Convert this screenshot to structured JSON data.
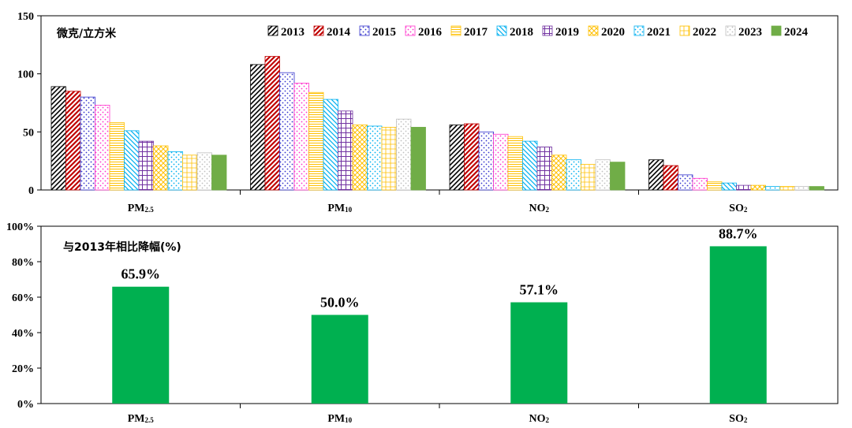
{
  "chart_data": [
    {
      "type": "bar",
      "title": "",
      "unit_label": "微克/立方米",
      "xlabel": "",
      "ylabel": "",
      "ylim": [
        0,
        150
      ],
      "yticks": [
        "0",
        "50",
        "100",
        "150"
      ],
      "categories": [
        "PM2.5",
        "PM10",
        "NO2",
        "SO2"
      ],
      "category_labels": [
        {
          "main": "PM",
          "sub": "2.5"
        },
        {
          "main": "PM",
          "sub": "10"
        },
        {
          "main": "NO",
          "sub": "2"
        },
        {
          "main": "SO",
          "sub": "2"
        }
      ],
      "legend_placement": "top-right",
      "grid": false,
      "series": [
        {
          "name": "2013",
          "values": [
            89,
            108,
            56,
            26
          ],
          "color": "#000000",
          "pattern": "diag"
        },
        {
          "name": "2014",
          "values": [
            85,
            115,
            57,
            21
          ],
          "color": "#c00000",
          "pattern": "diag-dense"
        },
        {
          "name": "2015",
          "values": [
            80,
            101,
            50,
            13
          ],
          "color": "#3333cc",
          "pattern": "dots"
        },
        {
          "name": "2016",
          "values": [
            73,
            92,
            48,
            10
          ],
          "color": "#ff33cc",
          "pattern": "dots"
        },
        {
          "name": "2017",
          "values": [
            58,
            84,
            46,
            7
          ],
          "color": "#ffc000",
          "pattern": "hlines"
        },
        {
          "name": "2018",
          "values": [
            51,
            78,
            42,
            6
          ],
          "color": "#00b0f0",
          "pattern": "diag-back"
        },
        {
          "name": "2019",
          "values": [
            42,
            68,
            37,
            4
          ],
          "color": "#7030a0",
          "pattern": "grid"
        },
        {
          "name": "2020",
          "values": [
            38,
            56,
            30,
            4
          ],
          "color": "#ffc000",
          "pattern": "cross"
        },
        {
          "name": "2021",
          "values": [
            33,
            55,
            26,
            3
          ],
          "color": "#00b0f0",
          "pattern": "dots"
        },
        {
          "name": "2022",
          "values": [
            30,
            54,
            22,
            3
          ],
          "color": "#ffc000",
          "pattern": "grid-light"
        },
        {
          "name": "2023",
          "values": [
            32,
            61,
            26,
            3
          ],
          "color": "#bfbfbf",
          "pattern": "dots"
        },
        {
          "name": "2024",
          "values": [
            30,
            54,
            24,
            3
          ],
          "color": "#70ad47",
          "pattern": "solid"
        }
      ]
    },
    {
      "type": "bar",
      "title": "与2013年相比降幅(%)",
      "xlabel": "",
      "ylabel": "",
      "ylim": [
        0,
        100
      ],
      "yticks": [
        "0%",
        "20%",
        "40%",
        "60%",
        "80%",
        "100%"
      ],
      "categories": [
        "PM2.5",
        "PM10",
        "NO2",
        "SO2"
      ],
      "category_labels": [
        {
          "main": "PM",
          "sub": "2.5"
        },
        {
          "main": "PM",
          "sub": "10"
        },
        {
          "main": "NO",
          "sub": "2"
        },
        {
          "main": "SO",
          "sub": "2"
        }
      ],
      "grid": false,
      "series": [
        {
          "name": "",
          "values": [
            65.9,
            50.0,
            57.1,
            88.7
          ],
          "color": "#00b050"
        }
      ],
      "data_labels": [
        "65.9%",
        "50.0%",
        "57.1%",
        "88.7%"
      ]
    }
  ]
}
